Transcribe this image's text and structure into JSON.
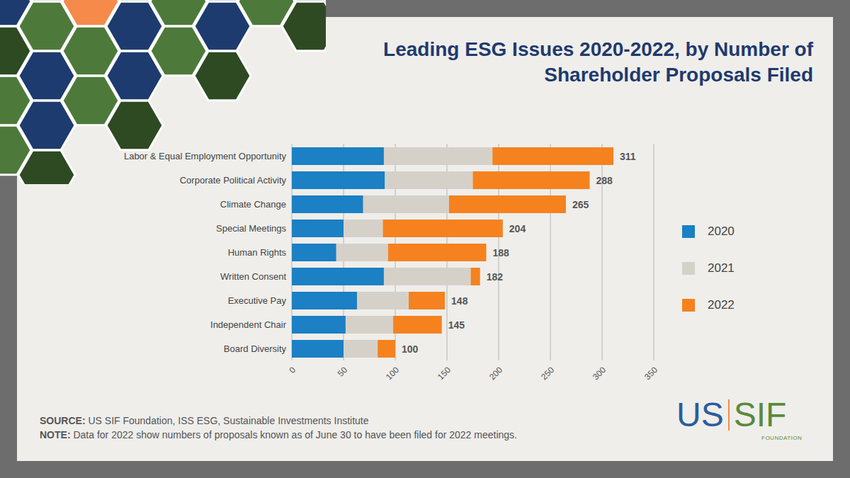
{
  "chart_data": {
    "type": "bar",
    "title": "Leading ESG Issues 2020-2022, by Number of Shareholder Proposals Filed",
    "orientation": "horizontal",
    "stacked": true,
    "grid": true,
    "legend": "right",
    "categories": [
      "Labor & Equal Employment Opportunity",
      "Corporate Political Activity",
      "Climate Change",
      "Special Meetings",
      "Human Rights",
      "Written Consent",
      "Executive Pay",
      "Independent Chair",
      "Board Diversity"
    ],
    "series": [
      {
        "name": "2020",
        "color": "#1b80c4",
        "values": [
          89,
          90,
          69,
          50,
          43,
          89,
          63,
          52,
          50
        ]
      },
      {
        "name": "2021",
        "color": "#d6d1c8",
        "values": [
          105,
          85,
          83,
          38,
          50,
          84,
          50,
          46,
          33
        ]
      },
      {
        "name": "2022",
        "color": "#f5821f",
        "values": [
          117,
          113,
          113,
          116,
          95,
          9,
          35,
          47,
          17
        ]
      }
    ],
    "totals": [
      311,
      288,
      265,
      204,
      188,
      182,
      148,
      145,
      100
    ],
    "xlim": [
      0,
      350
    ],
    "xticks": [
      0,
      50,
      100,
      150,
      200,
      250,
      300,
      350
    ]
  },
  "source": {
    "label": "SOURCE:",
    "text": "US SIF Foundation, ISS ESG, Sustainable Investments Institute"
  },
  "note": {
    "label": "NOTE:",
    "text": "Data for 2022 show numbers of proposals known as of June 30 to have been filed for 2022 meetings."
  },
  "logo": {
    "left": "US",
    "right": "SIF",
    "sub": "FOUNDATION"
  }
}
